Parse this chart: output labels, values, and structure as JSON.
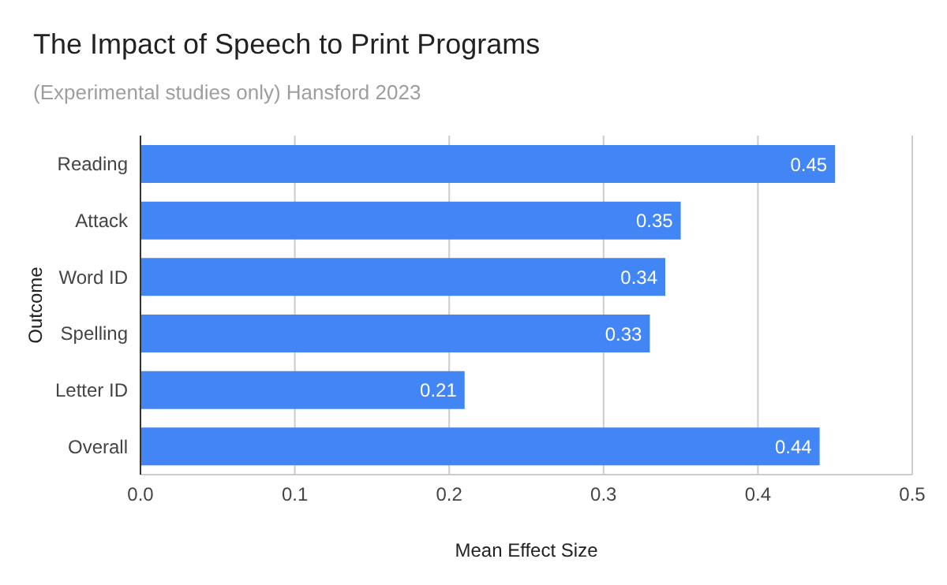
{
  "chart_data": {
    "type": "bar",
    "orientation": "horizontal",
    "title": "The Impact of Speech to Print Programs",
    "subtitle": "(Experimental studies only) Hansford 2023",
    "xlabel": "Mean Effect Size",
    "ylabel": "Outcome",
    "categories": [
      "Reading",
      "Attack",
      "Word ID",
      "Spelling",
      "Letter ID",
      "Overall"
    ],
    "values": [
      0.45,
      0.35,
      0.34,
      0.33,
      0.21,
      0.44
    ],
    "color": "#4285f4",
    "xlim": [
      0,
      0.5
    ],
    "xticks": [
      {
        "value": 0,
        "label": "0.0"
      },
      0.1,
      0.2,
      0.3,
      0.4,
      0.5
    ],
    "grid": "x",
    "data_labels": true
  }
}
